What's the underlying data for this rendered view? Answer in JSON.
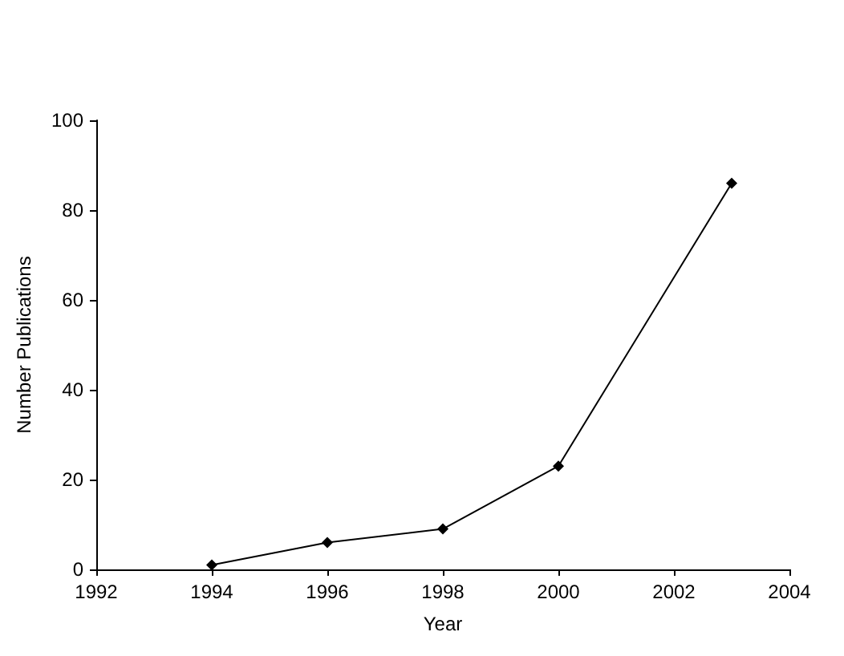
{
  "chart_data": {
    "type": "line",
    "xlabel": "Year",
    "ylabel": "Number Publications",
    "x": [
      1994,
      1996,
      1998,
      2000,
      2003
    ],
    "series": [
      {
        "color": "#000000",
        "values": [
          1,
          6,
          9,
          23,
          86
        ]
      }
    ],
    "xlim": [
      1992,
      2004
    ],
    "xticks": [
      1992,
      1994,
      1996,
      1998,
      2000,
      2002,
      2004
    ],
    "ylim": [
      0,
      100
    ],
    "yticks": [
      0,
      20,
      40,
      60,
      80,
      100
    ],
    "grid": false,
    "marker": "diamond",
    "line_style": "solid"
  }
}
